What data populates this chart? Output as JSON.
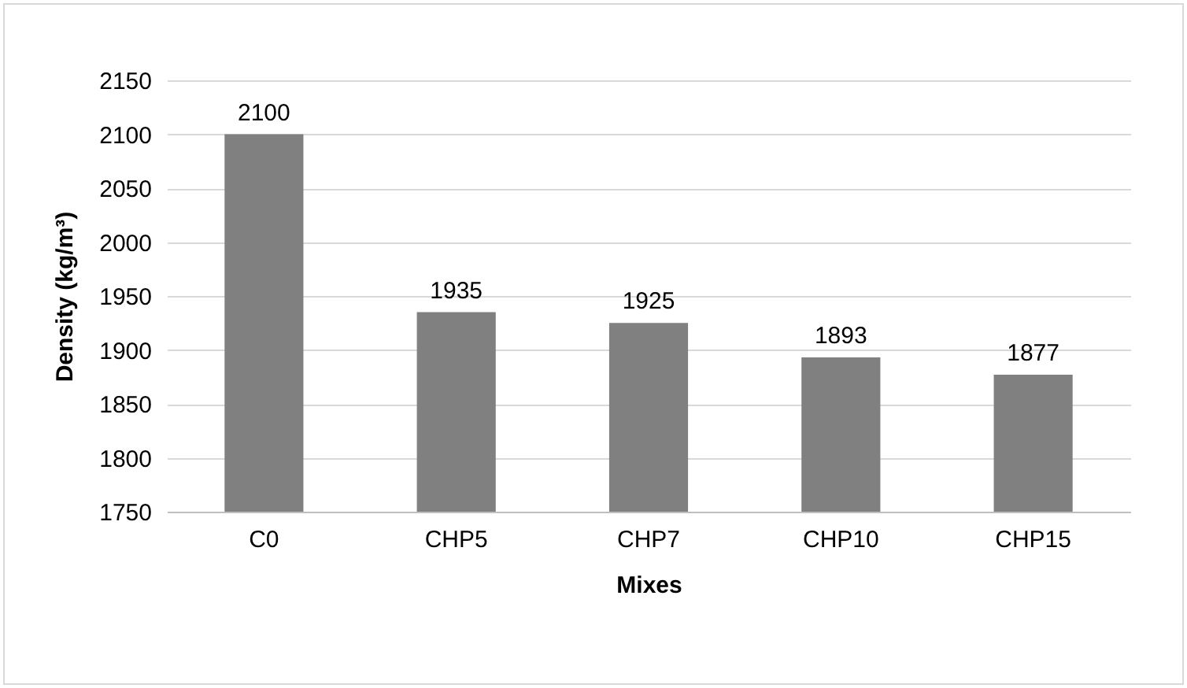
{
  "chart_data": {
    "type": "bar",
    "xlabel": "Mixes",
    "ylabel": "Density (kg/m³)",
    "categories": [
      "C0",
      "CHP5",
      "CHP7",
      "CHP10",
      "CHP15"
    ],
    "values": [
      2100,
      1935,
      1925,
      1893,
      1877
    ],
    "color": "#808080",
    "ylim": [
      1750,
      2150
    ],
    "yticks": [
      1750,
      1800,
      1850,
      1900,
      1950,
      2000,
      2050,
      2100,
      2150
    ],
    "grid": "y",
    "data_labels": true
  }
}
